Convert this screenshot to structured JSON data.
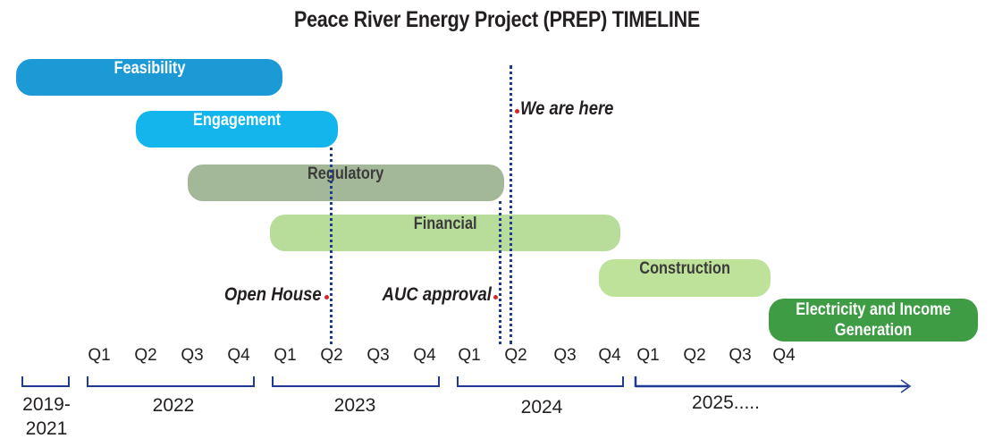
{
  "title": "Peace River Energy Project (PREP) TIMELINE",
  "phases": {
    "feasibility": "Feasibility",
    "engagement": "Engagement",
    "regulatory": "Regulatory",
    "financial": "Financial",
    "construction": "Construction",
    "electricity": "Electricity and Income Generation"
  },
  "milestones": {
    "we_are_here": "We are here",
    "open_house": "Open House",
    "auc_approval": "AUC approval"
  },
  "quarters": {
    "y2022": [
      "Q1",
      "Q2",
      "Q3",
      "Q4"
    ],
    "y2023": [
      "Q1",
      "Q2",
      "Q3",
      "Q4"
    ],
    "y2024": [
      "Q1",
      "Q2",
      "Q3",
      "Q4"
    ],
    "y2025": [
      "Q1",
      "Q2",
      "Q3",
      "Q4"
    ]
  },
  "years": {
    "y2019": "2019-\n2021",
    "y2022": "2022",
    "y2023": "2023",
    "y2024": "2024",
    "y2025": "2025....."
  },
  "colors": {
    "feasibility": "#1c9ad6",
    "engagement": "#13b6ec",
    "regulatory": "#a3b899",
    "financial": "#b8dc9a",
    "construction": "#bfe29b",
    "electricity": "#3e9c45",
    "axis": "#1f3a93",
    "marker_dot": "#d7262b"
  }
}
